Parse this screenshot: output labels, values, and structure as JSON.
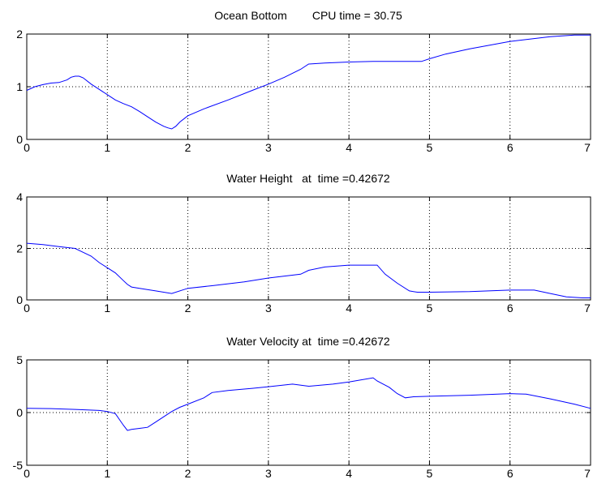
{
  "figure": {
    "background": "#ffffff",
    "axes_color": "#000000",
    "grid_color": "#000000"
  },
  "chart_data": [
    {
      "type": "line",
      "title": "Ocean Bottom        CPU time = 30.75",
      "xlabel": "",
      "ylabel": "",
      "xlim": [
        0,
        7
      ],
      "ylim": [
        0,
        2
      ],
      "xticks": [
        0,
        1,
        2,
        3,
        4,
        5,
        6,
        7
      ],
      "yticks": [
        0,
        1,
        2
      ],
      "grid": true,
      "series": [
        {
          "color": "#0000ff",
          "x": [
            0,
            0.1,
            0.2,
            0.3,
            0.4,
            0.5,
            0.55,
            0.6,
            0.65,
            0.7,
            0.8,
            0.9,
            1.0,
            1.1,
            1.2,
            1.3,
            1.4,
            1.5,
            1.6,
            1.7,
            1.75,
            1.8,
            1.85,
            1.9,
            2.0,
            2.2,
            2.5,
            2.8,
            3.0,
            3.2,
            3.4,
            3.5,
            3.7,
            4.0,
            4.3,
            4.6,
            4.9,
            5.0,
            5.2,
            5.5,
            6.0,
            6.5,
            6.8,
            7.0
          ],
          "y": [
            0.93,
            1.0,
            1.04,
            1.07,
            1.08,
            1.13,
            1.18,
            1.2,
            1.2,
            1.17,
            1.05,
            0.95,
            0.85,
            0.75,
            0.68,
            0.62,
            0.53,
            0.43,
            0.33,
            0.25,
            0.22,
            0.2,
            0.25,
            0.33,
            0.45,
            0.58,
            0.75,
            0.93,
            1.05,
            1.18,
            1.33,
            1.43,
            1.45,
            1.47,
            1.48,
            1.48,
            1.48,
            1.53,
            1.62,
            1.72,
            1.86,
            1.95,
            1.98,
            1.98
          ]
        }
      ]
    },
    {
      "type": "line",
      "title": "Water Height   at  time =0.42672",
      "xlabel": "",
      "ylabel": "",
      "xlim": [
        0,
        7
      ],
      "ylim": [
        0,
        4
      ],
      "xticks": [
        0,
        1,
        2,
        3,
        4,
        5,
        6,
        7
      ],
      "yticks": [
        0,
        2,
        4
      ],
      "grid": true,
      "series": [
        {
          "color": "#0000ff",
          "x": [
            0,
            0.2,
            0.4,
            0.6,
            0.7,
            0.8,
            0.9,
            1.0,
            1.1,
            1.2,
            1.25,
            1.3,
            1.4,
            1.6,
            1.8,
            2.0,
            2.3,
            2.7,
            3.0,
            3.4,
            3.5,
            3.7,
            4.0,
            4.35,
            4.45,
            4.6,
            4.75,
            4.85,
            5.0,
            5.5,
            6.0,
            6.3,
            6.5,
            6.7,
            6.9,
            7.0
          ],
          "y": [
            2.2,
            2.15,
            2.07,
            2.0,
            1.85,
            1.7,
            1.45,
            1.25,
            1.05,
            0.75,
            0.6,
            0.5,
            0.45,
            0.35,
            0.25,
            0.45,
            0.55,
            0.7,
            0.85,
            1.0,
            1.15,
            1.28,
            1.35,
            1.35,
            1.0,
            0.65,
            0.35,
            0.3,
            0.3,
            0.32,
            0.38,
            0.38,
            0.25,
            0.12,
            0.08,
            0.08
          ]
        }
      ]
    },
    {
      "type": "line",
      "title": "Water Velocity at  time =0.42672",
      "xlabel": "",
      "ylabel": "",
      "xlim": [
        0,
        7
      ],
      "ylim": [
        -5,
        5
      ],
      "xticks": [
        0,
        1,
        2,
        3,
        4,
        5,
        6,
        7
      ],
      "yticks": [
        -5,
        0,
        5
      ],
      "grid": true,
      "series": [
        {
          "color": "#0000ff",
          "x": [
            0,
            0.3,
            0.6,
            0.9,
            1.0,
            1.1,
            1.2,
            1.25,
            1.3,
            1.4,
            1.5,
            1.6,
            1.7,
            1.8,
            1.9,
            2.0,
            2.2,
            2.3,
            2.5,
            2.8,
            3.0,
            3.3,
            3.5,
            3.8,
            4.0,
            4.3,
            4.35,
            4.5,
            4.6,
            4.7,
            4.8,
            5.0,
            5.5,
            6.0,
            6.2,
            6.5,
            6.8,
            7.0
          ],
          "y": [
            0.4,
            0.38,
            0.3,
            0.2,
            0.1,
            -0.1,
            -1.2,
            -1.7,
            -1.6,
            -1.5,
            -1.4,
            -0.9,
            -0.4,
            0.1,
            0.5,
            0.8,
            1.4,
            1.9,
            2.1,
            2.3,
            2.45,
            2.7,
            2.5,
            2.7,
            2.9,
            3.3,
            3.0,
            2.4,
            1.8,
            1.4,
            1.5,
            1.55,
            1.65,
            1.8,
            1.75,
            1.3,
            0.8,
            0.4
          ]
        }
      ]
    }
  ]
}
